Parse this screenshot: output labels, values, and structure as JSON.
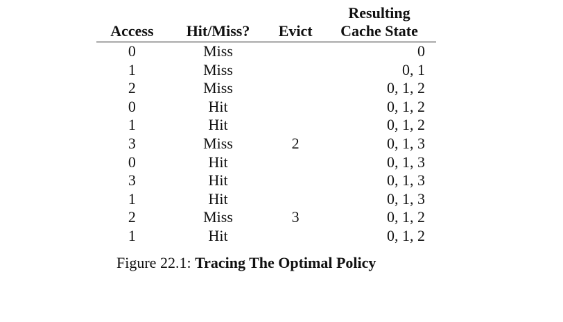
{
  "table": {
    "headers": {
      "access": "Access",
      "hit_miss": "Hit/Miss?",
      "evict": "Evict",
      "state_line1": "Resulting",
      "state_line2": "Cache State"
    },
    "rows": [
      {
        "access": "0",
        "result": "Miss",
        "evict": "",
        "state": "0"
      },
      {
        "access": "1",
        "result": "Miss",
        "evict": "",
        "state": "0, 1"
      },
      {
        "access": "2",
        "result": "Miss",
        "evict": "",
        "state": "0, 1, 2"
      },
      {
        "access": "0",
        "result": "Hit",
        "evict": "",
        "state": "0, 1, 2"
      },
      {
        "access": "1",
        "result": "Hit",
        "evict": "",
        "state": "0, 1, 2"
      },
      {
        "access": "3",
        "result": "Miss",
        "evict": "2",
        "state": "0, 1, 3"
      },
      {
        "access": "0",
        "result": "Hit",
        "evict": "",
        "state": "0, 1, 3"
      },
      {
        "access": "3",
        "result": "Hit",
        "evict": "",
        "state": "0, 1, 3"
      },
      {
        "access": "1",
        "result": "Hit",
        "evict": "",
        "state": "0, 1, 3"
      },
      {
        "access": "2",
        "result": "Miss",
        "evict": "3",
        "state": "0, 1, 2"
      },
      {
        "access": "1",
        "result": "Hit",
        "evict": "",
        "state": "0, 1, 2"
      }
    ]
  },
  "caption": {
    "label": "Figure 22.1:",
    "title": "Tracing The Optimal Policy"
  }
}
